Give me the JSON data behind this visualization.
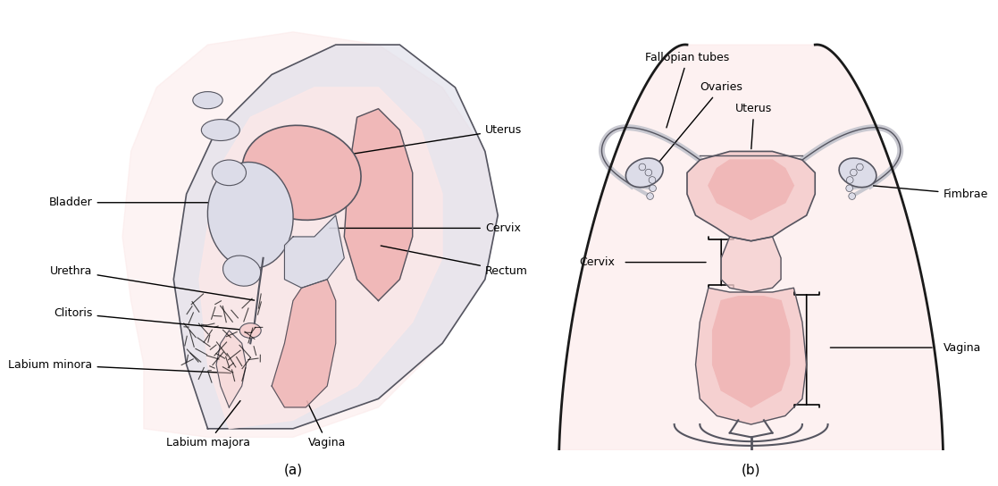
{
  "background_color": "#ffffff",
  "panel_a_bg": "#fce8e8",
  "panel_b_bg": "#fce8e8",
  "organ_pink": "#f0b8b8",
  "organ_light_pink": "#f5d0d0",
  "organ_gray": "#c8c8d0",
  "organ_light_gray": "#dcdce8",
  "outline_color": "#555560",
  "label_color": "#000000",
  "line_color": "#000000",
  "title_a": "(a)",
  "title_b": "(b)",
  "labels_a": [
    "Uterus",
    "Bladder",
    "Cervix",
    "Urethra",
    "Clitoris",
    "Labium minora",
    "Labium majora",
    "Vagina",
    "Rectum"
  ],
  "labels_b": [
    "Fallopian tubes",
    "Ovaries",
    "Uterus",
    "Cervix",
    "Fimbrae",
    "Vagina"
  ]
}
